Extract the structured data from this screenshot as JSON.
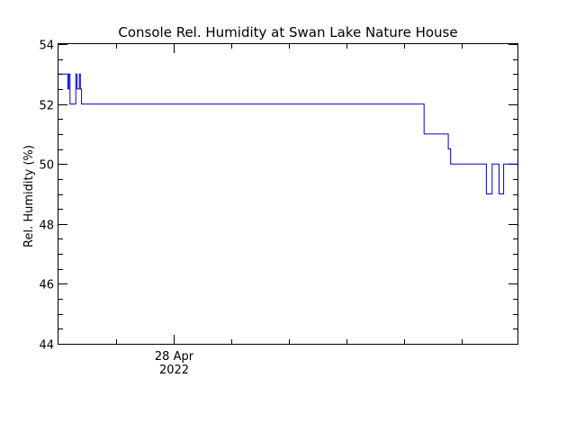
{
  "chart_data": {
    "type": "line",
    "title": "Console Rel. Humidity at Swan Lake Nature House",
    "ylabel": "Rel. Humidity (%)",
    "xlabel": "",
    "x_tick_labels": [
      {
        "x": 0.5,
        "line1": "28 Apr",
        "line2": "2022"
      }
    ],
    "xlim": [
      0,
      1.99
    ],
    "ylim": [
      44,
      54
    ],
    "y_ticks": [
      44,
      46,
      48,
      50,
      52,
      54
    ],
    "y_minor_step": 0.5,
    "x_minor_ticks": [
      0.25,
      0.5,
      0.75,
      1.0,
      1.25,
      1.5,
      1.75
    ],
    "grid": false,
    "line_color": "#0000cc",
    "series": [
      {
        "name": "",
        "step": true,
        "x": [
          0.0,
          0.04,
          0.045,
          0.05,
          0.06,
          0.075,
          0.08,
          0.09,
          0.095,
          0.1,
          1.585,
          1.69,
          1.7,
          1.855,
          1.87,
          1.88,
          1.895,
          1.91,
          1.93,
          1.99
        ],
        "y": [
          53,
          52.5,
          53,
          52,
          52,
          53,
          52.5,
          53,
          52.5,
          52,
          51,
          50.5,
          50,
          49,
          49,
          50,
          50,
          49,
          50,
          50
        ]
      }
    ]
  }
}
